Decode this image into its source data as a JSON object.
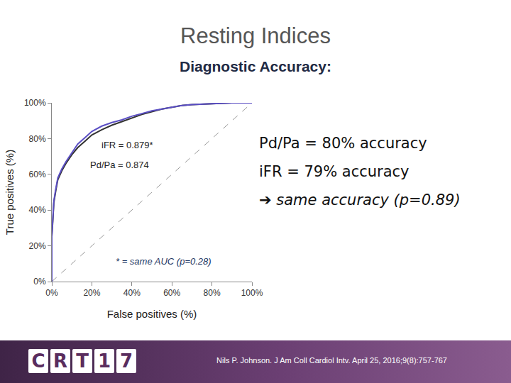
{
  "chart_data": {
    "type": "line",
    "title": "Resting Indices",
    "subtitle": "Diagnostic Accuracy:",
    "x_label": "False positives (%)",
    "y_label": "True positives (%)",
    "xlim": [
      0,
      100
    ],
    "ylim": [
      0,
      100
    ],
    "xticks": [
      {
        "value": 0,
        "label": "0%"
      },
      {
        "value": 20,
        "label": "20%"
      },
      {
        "value": 40,
        "label": "40%"
      },
      {
        "value": 60,
        "label": "60%"
      },
      {
        "value": 80,
        "label": "80%"
      },
      {
        "value": 100,
        "label": "100%"
      }
    ],
    "yticks": [
      {
        "value": 0,
        "label": "0%"
      },
      {
        "value": 20,
        "label": "20%"
      },
      {
        "value": 40,
        "label": "40%"
      },
      {
        "value": 60,
        "label": "60%"
      },
      {
        "value": 80,
        "label": "80%"
      },
      {
        "value": 100,
        "label": "100%"
      }
    ],
    "grid": false,
    "series": [
      {
        "color": "#999999",
        "line_style": "dashed",
        "x": [
          0,
          100
        ],
        "values": [
          0,
          100
        ]
      },
      {
        "color": "#333333",
        "line_style": "solid",
        "x": [
          0,
          0,
          0.5,
          1,
          2,
          3,
          5,
          7,
          10,
          13,
          17,
          20,
          25,
          30,
          35,
          40,
          45,
          50,
          55,
          60,
          65,
          70,
          80,
          90,
          100
        ],
        "values": [
          0,
          25,
          34,
          44,
          51,
          57,
          62,
          66,
          71,
          75,
          79,
          82,
          85,
          87.5,
          89.5,
          91.5,
          93.5,
          95,
          96.5,
          97.5,
          98.5,
          99,
          99.5,
          100,
          100
        ]
      },
      {
        "color": "#5b4fc4",
        "line_style": "solid",
        "x": [
          0,
          0,
          0.5,
          1,
          2,
          3,
          5,
          7,
          10,
          13,
          17,
          20,
          25,
          30,
          35,
          40,
          45,
          50,
          55,
          60,
          65,
          70,
          80,
          90,
          100
        ],
        "values": [
          0,
          26,
          35,
          45,
          52,
          58,
          63,
          67,
          72,
          77,
          81,
          84,
          87,
          89,
          90.5,
          92.5,
          94,
          95.5,
          96.5,
          97.5,
          98.5,
          99,
          99.5,
          100,
          100
        ]
      }
    ],
    "annotations": [
      "iFR = 0.879*",
      "Pd/Pa = 0.874",
      "* = same AUC (p=0.28)"
    ],
    "notes": [
      "Pd/Pa = 80% accuracy",
      "iFR = 79% accuracy",
      "➔ same accuracy (p=0.89)"
    ]
  },
  "footer": {
    "logo": "CRT17",
    "citation": "Nils P. Johnson. J Am Coll Cardiol Intv. April 25, 2016;9(8):757-767"
  }
}
